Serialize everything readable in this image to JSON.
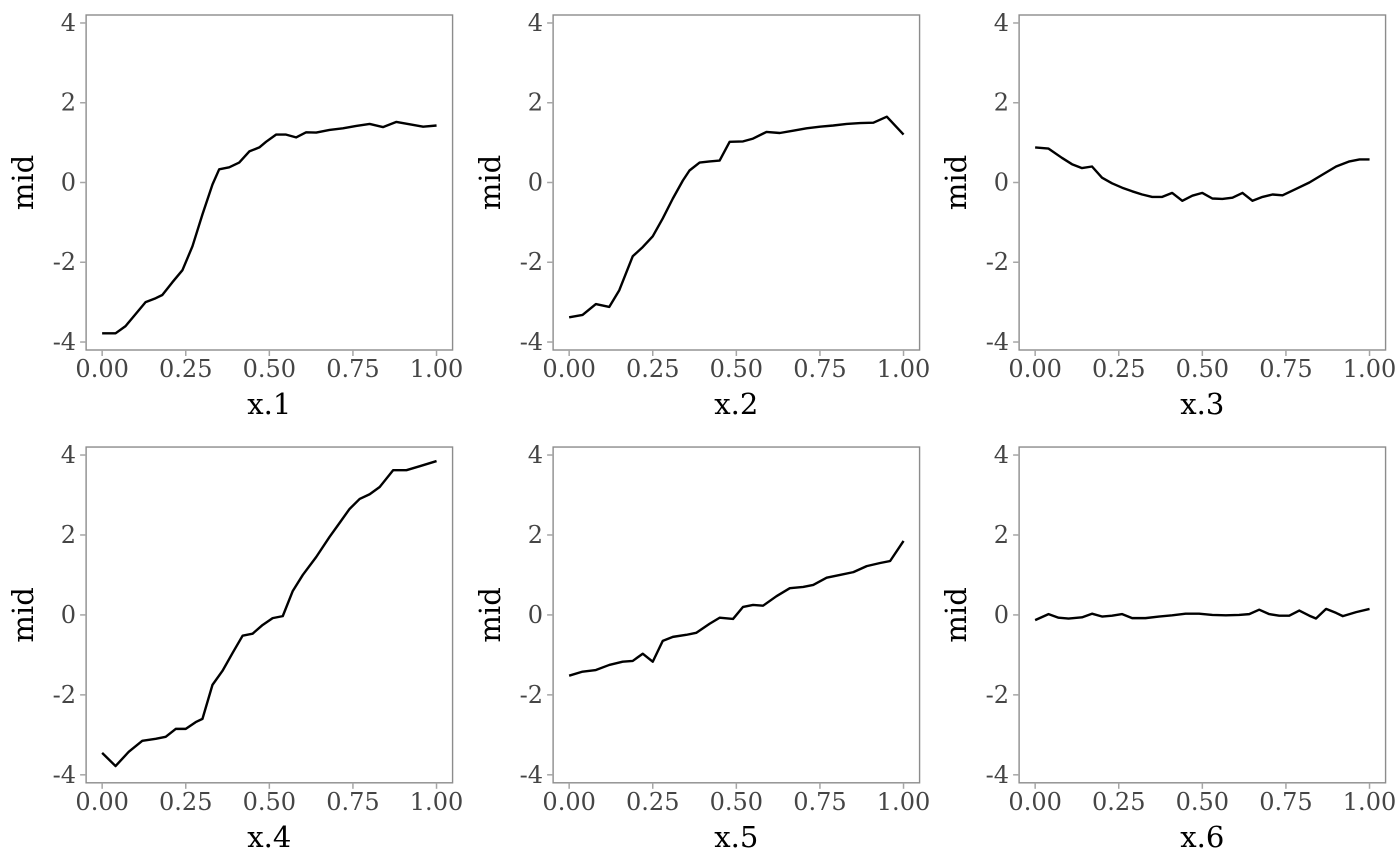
{
  "figure": {
    "background": "#ffffff",
    "rows": 2,
    "cols": 3
  },
  "colors": {
    "line": "#000000",
    "panel_border": "#8c8c8c",
    "tick_mark": "#a6a6a6",
    "tick_label": "#454545",
    "axis_title": "#000000",
    "panel_background": "#ffffff"
  },
  "axes_shared": {
    "ylabel": "mid",
    "x_tick_values": [
      0,
      0.25,
      0.5,
      0.75,
      1
    ],
    "x_tick_labels": [
      "0.00",
      "0.25",
      "0.50",
      "0.75",
      "1.00"
    ],
    "y_tick_values": [
      -4,
      -2,
      0,
      2,
      4
    ],
    "y_tick_labels": [
      "-4",
      "-2",
      "0",
      "2",
      "4"
    ],
    "xlim": [
      -0.048,
      1.048
    ],
    "ylim": [
      -4.2,
      4.2
    ],
    "grid": "off",
    "legend": "none"
  },
  "chart_data": [
    {
      "type": "line",
      "xlabel": "x.1",
      "ylabel": "mid",
      "x": [
        0.0,
        0.04,
        0.07,
        0.1,
        0.13,
        0.16,
        0.18,
        0.21,
        0.24,
        0.27,
        0.3,
        0.33,
        0.35,
        0.38,
        0.41,
        0.44,
        0.47,
        0.49,
        0.52,
        0.55,
        0.58,
        0.61,
        0.64,
        0.68,
        0.72,
        0.76,
        0.8,
        0.84,
        0.88,
        0.92,
        0.96,
        1.0
      ],
      "y": [
        -3.78,
        -3.78,
        -3.6,
        -3.3,
        -3.0,
        -2.9,
        -2.82,
        -2.5,
        -2.2,
        -1.6,
        -0.8,
        -0.05,
        0.33,
        0.38,
        0.5,
        0.78,
        0.88,
        1.02,
        1.2,
        1.2,
        1.13,
        1.26,
        1.25,
        1.32,
        1.36,
        1.42,
        1.47,
        1.39,
        1.52,
        1.46,
        1.4,
        1.43
      ]
    },
    {
      "type": "line",
      "xlabel": "x.2",
      "ylabel": "mid",
      "x": [
        0.0,
        0.04,
        0.08,
        0.12,
        0.15,
        0.19,
        0.22,
        0.25,
        0.28,
        0.31,
        0.34,
        0.36,
        0.39,
        0.42,
        0.45,
        0.48,
        0.52,
        0.55,
        0.59,
        0.63,
        0.67,
        0.71,
        0.75,
        0.79,
        0.83,
        0.87,
        0.91,
        0.95,
        1.0
      ],
      "y": [
        -3.38,
        -3.32,
        -3.05,
        -3.12,
        -2.7,
        -1.85,
        -1.62,
        -1.35,
        -0.9,
        -0.4,
        0.05,
        0.3,
        0.5,
        0.53,
        0.55,
        1.02,
        1.03,
        1.1,
        1.27,
        1.24,
        1.3,
        1.36,
        1.4,
        1.43,
        1.47,
        1.49,
        1.5,
        1.65,
        1.2
      ]
    },
    {
      "type": "line",
      "xlabel": "x.3",
      "ylabel": "mid",
      "x": [
        0.0,
        0.04,
        0.08,
        0.11,
        0.14,
        0.17,
        0.2,
        0.23,
        0.26,
        0.29,
        0.32,
        0.35,
        0.38,
        0.41,
        0.44,
        0.47,
        0.5,
        0.53,
        0.56,
        0.59,
        0.62,
        0.65,
        0.68,
        0.71,
        0.74,
        0.78,
        0.82,
        0.86,
        0.9,
        0.94,
        0.97,
        1.0
      ],
      "y": [
        0.88,
        0.85,
        0.62,
        0.46,
        0.36,
        0.4,
        0.12,
        -0.02,
        -0.13,
        -0.22,
        -0.3,
        -0.36,
        -0.36,
        -0.26,
        -0.46,
        -0.33,
        -0.26,
        -0.4,
        -0.41,
        -0.38,
        -0.26,
        -0.46,
        -0.36,
        -0.3,
        -0.32,
        -0.16,
        0.0,
        0.2,
        0.4,
        0.53,
        0.58,
        0.58
      ]
    },
    {
      "type": "line",
      "xlabel": "x.4",
      "ylabel": "mid",
      "x": [
        0.0,
        0.04,
        0.08,
        0.12,
        0.16,
        0.19,
        0.22,
        0.25,
        0.28,
        0.3,
        0.33,
        0.36,
        0.39,
        0.42,
        0.45,
        0.48,
        0.51,
        0.54,
        0.57,
        0.6,
        0.64,
        0.68,
        0.71,
        0.74,
        0.77,
        0.8,
        0.83,
        0.87,
        0.91,
        0.95,
        1.0
      ],
      "y": [
        -3.45,
        -3.78,
        -3.42,
        -3.15,
        -3.1,
        -3.05,
        -2.85,
        -2.85,
        -2.68,
        -2.6,
        -1.75,
        -1.4,
        -0.95,
        -0.52,
        -0.47,
        -0.25,
        -0.08,
        -0.03,
        0.6,
        1.0,
        1.45,
        1.95,
        2.3,
        2.65,
        2.9,
        3.02,
        3.2,
        3.62,
        3.62,
        3.72,
        3.85
      ]
    },
    {
      "type": "line",
      "xlabel": "x.5",
      "ylabel": "mid",
      "x": [
        0.0,
        0.04,
        0.08,
        0.12,
        0.16,
        0.19,
        0.22,
        0.25,
        0.28,
        0.31,
        0.35,
        0.38,
        0.42,
        0.45,
        0.49,
        0.52,
        0.55,
        0.58,
        0.62,
        0.66,
        0.7,
        0.73,
        0.77,
        0.81,
        0.85,
        0.89,
        0.93,
        0.96,
        1.0
      ],
      "y": [
        -1.52,
        -1.42,
        -1.38,
        -1.25,
        -1.17,
        -1.15,
        -0.97,
        -1.17,
        -0.65,
        -0.55,
        -0.5,
        -0.45,
        -0.22,
        -0.07,
        -0.1,
        0.2,
        0.25,
        0.23,
        0.47,
        0.67,
        0.7,
        0.75,
        0.93,
        1.0,
        1.07,
        1.22,
        1.3,
        1.35,
        1.85
      ]
    },
    {
      "type": "line",
      "xlabel": "x.6",
      "ylabel": "mid",
      "x": [
        0.0,
        0.04,
        0.07,
        0.1,
        0.14,
        0.17,
        0.2,
        0.23,
        0.26,
        0.29,
        0.33,
        0.37,
        0.41,
        0.45,
        0.49,
        0.53,
        0.57,
        0.61,
        0.64,
        0.67,
        0.7,
        0.73,
        0.76,
        0.79,
        0.82,
        0.84,
        0.87,
        0.9,
        0.92,
        0.96,
        1.0
      ],
      "y": [
        -0.13,
        0.02,
        -0.07,
        -0.09,
        -0.06,
        0.03,
        -0.04,
        -0.02,
        0.02,
        -0.08,
        -0.08,
        -0.04,
        -0.01,
        0.03,
        0.03,
        0.0,
        -0.01,
        0.0,
        0.02,
        0.13,
        0.02,
        -0.02,
        -0.02,
        0.11,
        -0.02,
        -0.09,
        0.15,
        0.05,
        -0.03,
        0.07,
        0.15
      ]
    }
  ]
}
